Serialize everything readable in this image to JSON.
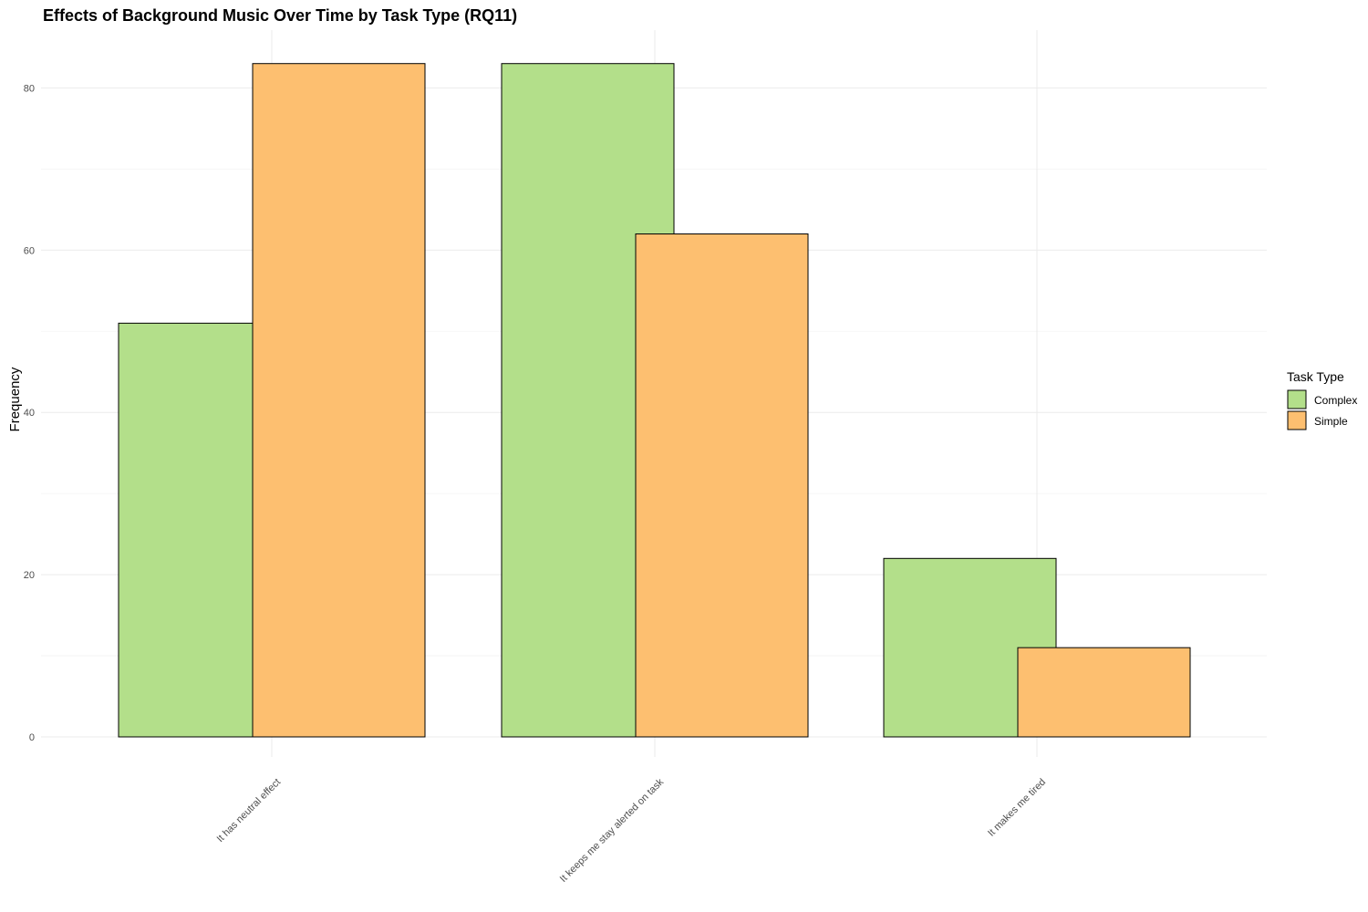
{
  "chart_data": {
    "type": "bar",
    "title": "Effects of Background Music Over Time by Task Type (RQ11)",
    "xlabel": "",
    "ylabel": "Frequency",
    "categories": [
      "It has neutral effect",
      "It keeps me stay alerted on task",
      "It makes me tired"
    ],
    "series": [
      {
        "name": "Complex",
        "color": "#b3df8a",
        "values": [
          51,
          83,
          22
        ]
      },
      {
        "name": "Simple",
        "color": "#fdbf70",
        "values": [
          83,
          62,
          11
        ]
      }
    ],
    "ylim": [
      0,
      87
    ],
    "yticks": [
      0,
      20,
      40,
      60,
      80
    ],
    "grid": true,
    "legend": {
      "title": "Task Type",
      "placement": "right"
    }
  }
}
